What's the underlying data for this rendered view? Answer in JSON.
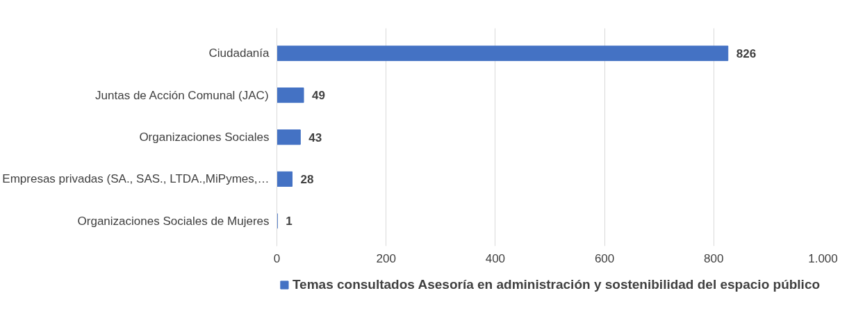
{
  "chart_data": {
    "type": "bar",
    "orientation": "horizontal",
    "categories": [
      "Ciudadanía",
      "Juntas de Acción Comunal (JAC)",
      "Organizaciones Sociales",
      "Empresas privadas (SA., SAS., LTDA.,MiPymes,…",
      "Organizaciones Sociales de Mujeres"
    ],
    "series": [
      {
        "name": "Temas consultados Asesoría en administración y sostenibilidad del espacio público",
        "color": "#4472c4",
        "values": [
          826,
          49,
          43,
          28,
          1
        ]
      }
    ],
    "xlim": [
      0,
      1000
    ],
    "xticks": [
      0,
      200,
      400,
      600,
      800,
      {
        "value": 1000,
        "label": "1.000"
      }
    ],
    "grid": "x",
    "legend": "bottom",
    "data_labels": true
  }
}
